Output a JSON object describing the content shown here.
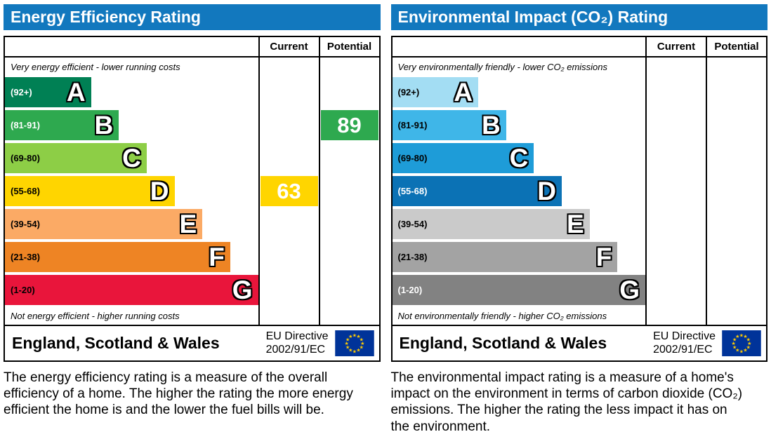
{
  "colors": {
    "header_bg": "#1278be",
    "flag_bg": "#003399",
    "flag_star": "#ffcc00",
    "energy_current_block": "#ffd500",
    "energy_potential_block": "#2ea94f"
  },
  "panels": [
    {
      "title": "Energy Efficiency Rating",
      "columns": {
        "current": "Current",
        "potential": "Potential"
      },
      "top_note": "Very energy efficient - lower running costs",
      "bottom_note": "Not energy efficient - higher running costs",
      "bands": [
        {
          "range": "(92+)",
          "letter": "A",
          "color": "#008054",
          "label_color": "#ffffff",
          "width_pct": 34
        },
        {
          "range": "(81-91)",
          "letter": "B",
          "color": "#2ea94f",
          "label_color": "#ffffff",
          "width_pct": 45
        },
        {
          "range": "(69-80)",
          "letter": "C",
          "color": "#8dce46",
          "label_color": "#000000",
          "width_pct": 56
        },
        {
          "range": "(55-68)",
          "letter": "D",
          "color": "#ffd500",
          "label_color": "#000000",
          "width_pct": 67
        },
        {
          "range": "(39-54)",
          "letter": "E",
          "color": "#fbaa65",
          "label_color": "#000000",
          "width_pct": 78
        },
        {
          "range": "(21-38)",
          "letter": "F",
          "color": "#ee8424",
          "label_color": "#000000",
          "width_pct": 89
        },
        {
          "range": "(1-20)",
          "letter": "G",
          "color": "#e9153b",
          "label_color": "#000000",
          "width_pct": 100
        }
      ],
      "current": {
        "value": "63",
        "band": "D",
        "color": "#ffd500"
      },
      "potential": {
        "value": "89",
        "band": "B",
        "color": "#2ea94f"
      },
      "footer": {
        "region": "England, Scotland & Wales",
        "directive_line1": "EU Directive",
        "directive_line2": "2002/91/EC"
      },
      "caption": "The energy efficiency rating is a measure of the overall efficiency of a home. The higher the rating the more energy efficient the home is and the lower the fuel bills will be."
    },
    {
      "title": "Environmental Impact (CO₂) Rating",
      "columns": {
        "current": "Current",
        "potential": "Potential"
      },
      "top_note": "Very environmentally friendly - lower CO₂ emissions",
      "bottom_note": "Not environmentally friendly - higher CO₂ emissions",
      "bands": [
        {
          "range": "(92+)",
          "letter": "A",
          "color": "#a3ddf3",
          "label_color": "#000000",
          "width_pct": 34
        },
        {
          "range": "(81-91)",
          "letter": "B",
          "color": "#3fb6e8",
          "label_color": "#000000",
          "width_pct": 45
        },
        {
          "range": "(69-80)",
          "letter": "C",
          "color": "#1e9cd8",
          "label_color": "#000000",
          "width_pct": 56
        },
        {
          "range": "(55-68)",
          "letter": "D",
          "color": "#0b72b5",
          "label_color": "#ffffff",
          "width_pct": 67
        },
        {
          "range": "(39-54)",
          "letter": "E",
          "color": "#cacaca",
          "label_color": "#000000",
          "width_pct": 78
        },
        {
          "range": "(21-38)",
          "letter": "F",
          "color": "#a3a3a3",
          "label_color": "#000000",
          "width_pct": 89
        },
        {
          "range": "(1-20)",
          "letter": "G",
          "color": "#828282",
          "label_color": "#ffffff",
          "width_pct": 100
        }
      ],
      "current": null,
      "potential": null,
      "footer": {
        "region": "England, Scotland & Wales",
        "directive_line1": "EU Directive",
        "directive_line2": "2002/91/EC"
      },
      "caption": "The environmental impact rating is a measure of a home's impact on the environment in terms of carbon dioxide (CO₂) emissions. The higher the rating the less impact it has on the environment."
    }
  ],
  "chart_data": [
    {
      "type": "bar",
      "title": "Energy Efficiency Rating",
      "categories": [
        "A (92+)",
        "B (81-91)",
        "C (69-80)",
        "D (55-68)",
        "E (39-54)",
        "F (21-38)",
        "G (1-20)"
      ],
      "scale": [
        1,
        100
      ],
      "series": [
        {
          "name": "Current",
          "value": 63,
          "band": "D"
        },
        {
          "name": "Potential",
          "value": 89,
          "band": "B"
        }
      ],
      "top_note": "Very energy efficient - lower running costs",
      "bottom_note": "Not energy efficient - higher running costs",
      "region": "England, Scotland & Wales",
      "directive": "EU Directive 2002/91/EC"
    },
    {
      "type": "bar",
      "title": "Environmental Impact (CO₂) Rating",
      "categories": [
        "A (92+)",
        "B (81-91)",
        "C (69-80)",
        "D (55-68)",
        "E (39-54)",
        "F (21-38)",
        "G (1-20)"
      ],
      "scale": [
        1,
        100
      ],
      "series": [
        {
          "name": "Current",
          "value": null
        },
        {
          "name": "Potential",
          "value": null
        }
      ],
      "top_note": "Very environmentally friendly - lower CO₂ emissions",
      "bottom_note": "Not environmentally friendly - higher CO₂ emissions",
      "region": "England, Scotland & Wales",
      "directive": "EU Directive 2002/91/EC"
    }
  ]
}
